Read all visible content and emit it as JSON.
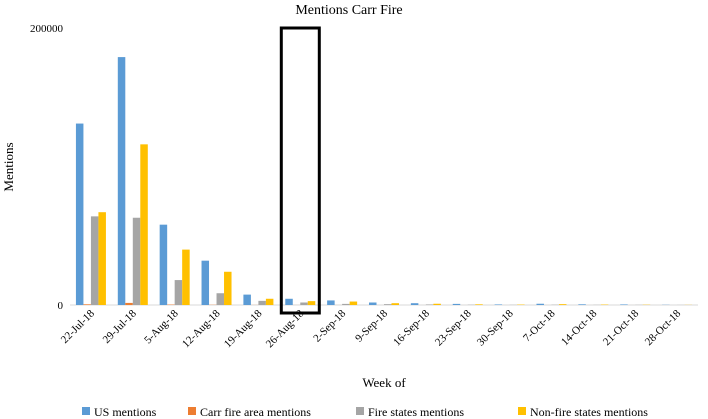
{
  "chart_data": {
    "type": "bar",
    "title": "Mentions Carr Fire",
    "xlabel": "Week of",
    "ylabel": "Mentions",
    "ylim": [
      0,
      200000
    ],
    "yticks": [
      "0",
      "200000"
    ],
    "grid": false,
    "legend_position": "bottom",
    "categories": [
      "22-Jul-18",
      "29-Jul-18",
      "5-Aug-18",
      "12-Aug-18",
      "19-Aug-18",
      "26-Aug-18",
      "2-Sep-18",
      "9-Sep-18",
      "16-Sep-18",
      "23-Sep-18",
      "30-Sep-18",
      "7-Oct-18",
      "14-Oct-18",
      "21-Oct-18",
      "28-Oct-18"
    ],
    "series": [
      {
        "name": "US mentions",
        "color": "#5B9BD5",
        "values": [
          131000,
          179000,
          58000,
          32000,
          7500,
          4500,
          3300,
          1800,
          1300,
          800,
          400,
          900,
          500,
          400,
          150
        ]
      },
      {
        "name": "Carr fire area mentions",
        "color": "#ED7D31",
        "values": [
          500,
          1500,
          300,
          150,
          50,
          30,
          20,
          10,
          10,
          5,
          5,
          5,
          5,
          5,
          0
        ]
      },
      {
        "name": "Fire states mentions",
        "color": "#A5A5A5",
        "values": [
          64000,
          63000,
          18000,
          8500,
          3000,
          1800,
          800,
          600,
          400,
          200,
          100,
          200,
          100,
          100,
          50
        ]
      },
      {
        "name": "Non-fire states mentions",
        "color": "#FFC000",
        "values": [
          67000,
          116000,
          40000,
          24000,
          4500,
          2800,
          2500,
          1300,
          900,
          500,
          300,
          600,
          300,
          200,
          100
        ]
      }
    ],
    "annotations": [
      {
        "type": "highlight-box",
        "category": "26-Aug-18"
      }
    ]
  }
}
